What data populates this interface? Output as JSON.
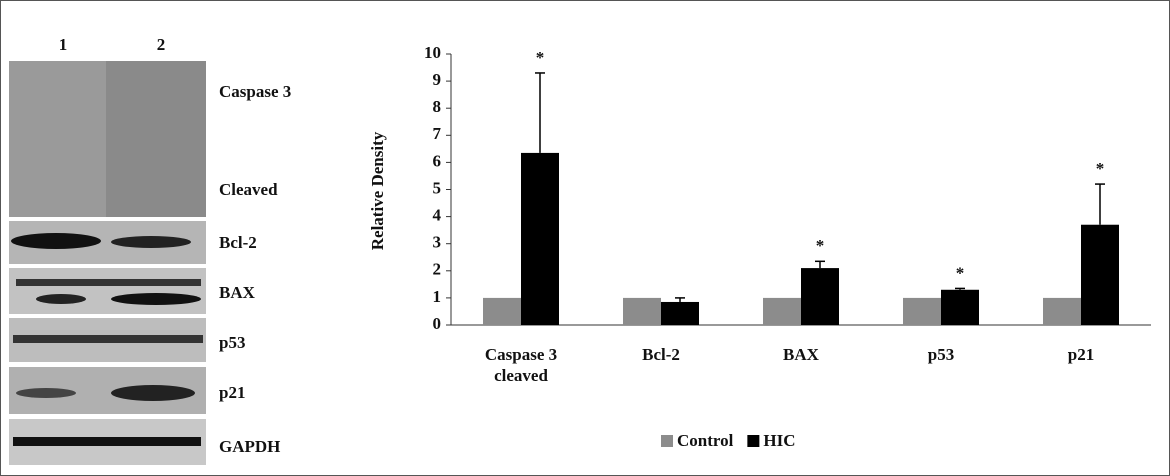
{
  "blot": {
    "lanes": [
      "1",
      "2"
    ],
    "labels": [
      "Caspase 3",
      "Cleaved",
      "Bcl-2",
      "BAX",
      "p53",
      "p21",
      "GAPDH"
    ]
  },
  "chart_data": {
    "type": "bar",
    "y_label": "Relative Density",
    "categories": [
      "Caspase 3 cleaved",
      "Bcl-2",
      "BAX",
      "p53",
      "p21"
    ],
    "series": [
      {
        "name": "Control",
        "color": "#8c8c8c",
        "values": [
          1,
          1,
          1,
          1,
          1
        ]
      },
      {
        "name": "HIC",
        "color": "#000000",
        "values": [
          6.35,
          0.85,
          2.1,
          1.3,
          3.7
        ],
        "errors": [
          2.95,
          0.15,
          0.25,
          0.05,
          1.5
        ],
        "significance": [
          "*",
          null,
          "*",
          "*",
          "*"
        ]
      }
    ],
    "ylim": [
      0,
      10
    ],
    "yticks": [
      0,
      1,
      2,
      3,
      4,
      5,
      6,
      7,
      8,
      9,
      10
    ],
    "legend": "bottom"
  }
}
